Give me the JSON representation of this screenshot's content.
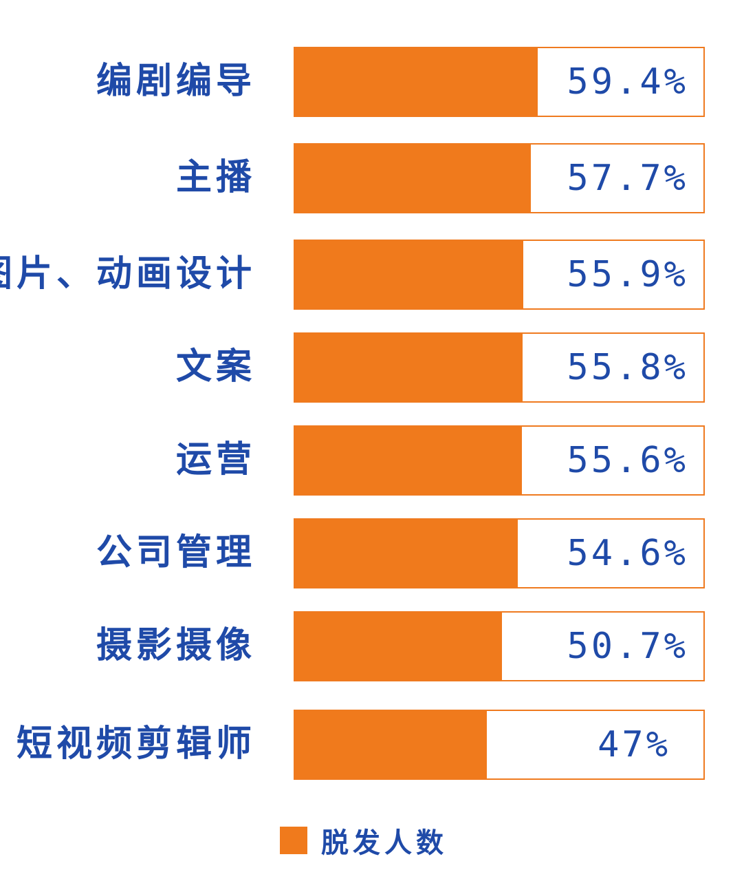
{
  "chart_data": {
    "type": "bar",
    "orientation": "horizontal",
    "categories": [
      "编剧编导",
      "主播",
      "图片、动画设计",
      "文案",
      "运营",
      "公司管理",
      "摄影摄像",
      "短视频剪辑师"
    ],
    "series": [
      {
        "name": "脱发人数",
        "values": [
          59.4,
          57.7,
          55.9,
          55.8,
          55.6,
          54.6,
          50.7,
          47
        ],
        "labels": [
          "59.4%",
          "57.7%",
          "55.9%",
          "55.8%",
          "55.6%",
          "54.6%",
          "50.7%",
          "47%"
        ]
      }
    ],
    "xlim": [
      0,
      100
    ],
    "grid": false,
    "legend": "bottom-center",
    "colors": {
      "bar": "#f07a1c",
      "frame": "#ef7a1f",
      "text": "#1f4aa8"
    }
  }
}
